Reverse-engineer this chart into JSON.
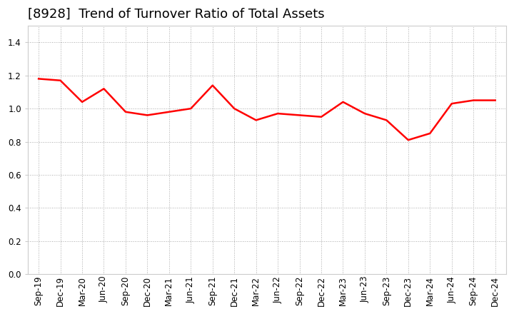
{
  "title": "[8928]  Trend of Turnover Ratio of Total Assets",
  "x_labels": [
    "Sep-19",
    "Dec-19",
    "Mar-20",
    "Jun-20",
    "Sep-20",
    "Dec-20",
    "Mar-21",
    "Jun-21",
    "Sep-21",
    "Dec-21",
    "Mar-22",
    "Jun-22",
    "Sep-22",
    "Dec-22",
    "Mar-23",
    "Jun-23",
    "Sep-23",
    "Dec-23",
    "Mar-24",
    "Jun-24",
    "Sep-24",
    "Dec-24"
  ],
  "y_values": [
    1.18,
    1.17,
    1.04,
    1.12,
    0.98,
    0.96,
    0.98,
    1.0,
    1.14,
    1.0,
    0.93,
    0.97,
    0.96,
    0.95,
    1.04,
    0.97,
    0.93,
    0.81,
    0.85,
    1.03,
    1.05,
    1.05
  ],
  "line_color": "#FF0000",
  "line_width": 1.8,
  "ylim": [
    0.0,
    1.5
  ],
  "yticks": [
    0.0,
    0.2,
    0.4,
    0.6,
    0.8,
    1.0,
    1.2,
    1.4
  ],
  "grid_color": "#aaaaaa",
  "grid_style": "dotted",
  "title_fontsize": 13,
  "tick_fontsize": 8.5,
  "bg_color": "#ffffff",
  "plot_bg_color": "#ffffff"
}
